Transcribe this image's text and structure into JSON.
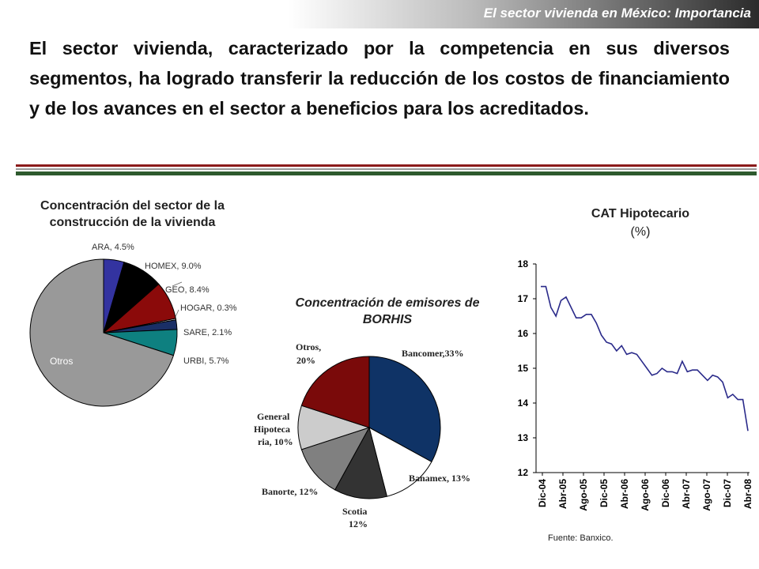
{
  "header": {
    "title": "El sector vivienda en México: Importancia"
  },
  "intro_text": "El sector vivienda, caracterizado por la competencia en sus diversos segmentos, ha logrado transferir la reducción de los costos de financiamiento y de los avances en el sector a beneficios para los acreditados.",
  "colors": {
    "rule_red": "#8b1a1a",
    "rule_green": "#2e5a2e"
  },
  "source_note": "Fuente: Banxico.",
  "chart_data": [
    {
      "type": "pie",
      "title": "Concentración del sector de la construcción de la vivienda",
      "slices": [
        {
          "label": "ARA, 4.5%",
          "value": 4.5,
          "color": "#3333a0"
        },
        {
          "label": "HOMEX, 9.0%",
          "value": 9.0,
          "color": "#000000"
        },
        {
          "label": "GEO, 8.4%",
          "value": 8.4,
          "color": "#8b0a0a"
        },
        {
          "label": "HOGAR, 0.3%",
          "value": 0.3,
          "color": "#e8e8e8"
        },
        {
          "label": "SARE, 2.1%",
          "value": 2.1,
          "color": "#1a2f66"
        },
        {
          "label": "URBI, 5.7%",
          "value": 5.7,
          "color": "#0e8080"
        },
        {
          "label": "Otros",
          "value": 70.0,
          "color": "#999999"
        }
      ]
    },
    {
      "type": "pie",
      "title": "Concentración de emisores de BORHIS",
      "slices": [
        {
          "label": "Bancomer,33%",
          "value": 33,
          "color": "#0f3366"
        },
        {
          "label": "Banamex, 13%",
          "value": 13,
          "color": "#ffffff"
        },
        {
          "label": "Scotia 12%",
          "value": 12,
          "color": "#333333"
        },
        {
          "label": "Banorte, 12%",
          "value": 12,
          "color": "#808080"
        },
        {
          "label": "General Hipotecaria, 10%",
          "value": 10,
          "color": "#cccccc"
        },
        {
          "label": "Otros, 20%",
          "value": 20,
          "color": "#7a0a0a"
        }
      ]
    },
    {
      "type": "line",
      "title": "CAT Hipotecario",
      "subtitle": "(%)",
      "ylim": [
        12,
        18
      ],
      "yticks": [
        "12",
        "13",
        "14",
        "15",
        "16",
        "17",
        "18"
      ],
      "xtick_labels": [
        "Dic-04",
        "Abr-05",
        "Ago-05",
        "Dic-05",
        "Abr-06",
        "Ago-06",
        "Dic-06",
        "Abr-07",
        "Ago-07",
        "Dic-07",
        "Abr-08"
      ],
      "series_color": "#2a2a8a",
      "values": [
        17.35,
        17.35,
        16.75,
        16.5,
        16.95,
        17.05,
        16.75,
        16.45,
        16.45,
        16.55,
        16.55,
        16.3,
        15.95,
        15.75,
        15.7,
        15.5,
        15.65,
        15.4,
        15.45,
        15.4,
        15.2,
        15.0,
        14.8,
        14.85,
        15.0,
        14.9,
        14.9,
        14.85,
        15.2,
        14.9,
        14.95,
        14.95,
        14.8,
        14.65,
        14.8,
        14.75,
        14.6,
        14.15,
        14.25,
        14.1,
        14.1,
        13.2
      ]
    }
  ]
}
